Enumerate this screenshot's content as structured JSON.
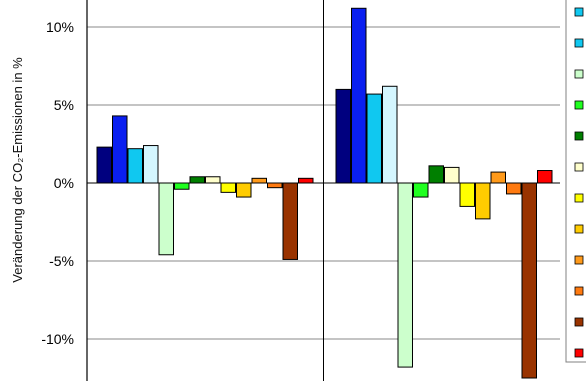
{
  "chart_data": {
    "type": "bar",
    "ylabel": "Veränderung der CO₂-Emissionen in %",
    "ylim": [
      -12.5,
      10.8
    ],
    "yticks": [
      {
        "value": 10,
        "label": "10%"
      },
      {
        "value": 5,
        "label": "5%"
      },
      {
        "value": 0,
        "label": "0%"
      },
      {
        "value": -5,
        "label": "-5%"
      },
      {
        "value": -10,
        "label": "-10%"
      }
    ],
    "grid": true,
    "legend_position": "right",
    "groups": [
      {
        "bars": [
          {
            "value": 2.3,
            "color": "#00007f"
          },
          {
            "value": 4.3,
            "color": "#0a1ff0"
          },
          {
            "value": 2.2,
            "color": "#10c8f0"
          },
          {
            "value": 2.4,
            "color": "#d4f6ff"
          },
          {
            "value": -4.6,
            "color": "#ccffcc"
          },
          {
            "value": -0.4,
            "color": "#20ff20"
          },
          {
            "value": 0.4,
            "color": "#007f00"
          },
          {
            "value": 0.4,
            "color": "#ffffcc"
          },
          {
            "value": -0.6,
            "color": "#ffff00"
          },
          {
            "value": -0.9,
            "color": "#ffcc00"
          },
          {
            "value": 0.3,
            "color": "#ff9a1a"
          },
          {
            "value": -0.3,
            "color": "#ff7a10"
          },
          {
            "value": -4.9,
            "color": "#993300"
          },
          {
            "value": 0.3,
            "color": "#ff0000"
          }
        ]
      },
      {
        "bars": [
          {
            "value": 6.0,
            "color": "#00007f"
          },
          {
            "value": 11.2,
            "color": "#0a1ff0"
          },
          {
            "value": 5.7,
            "color": "#10c8f0"
          },
          {
            "value": 6.2,
            "color": "#d4f6ff"
          },
          {
            "value": -11.8,
            "color": "#ccffcc"
          },
          {
            "value": -0.9,
            "color": "#20ff20"
          },
          {
            "value": 1.1,
            "color": "#007f00"
          },
          {
            "value": 1.0,
            "color": "#ffffcc"
          },
          {
            "value": -1.5,
            "color": "#ffff00"
          },
          {
            "value": -2.3,
            "color": "#ffcc00"
          },
          {
            "value": 0.7,
            "color": "#ff9a1a"
          },
          {
            "value": -0.7,
            "color": "#ff7a10"
          },
          {
            "value": -12.5,
            "color": "#993300"
          },
          {
            "value": 0.8,
            "color": "#ff0000"
          }
        ]
      }
    ],
    "legend_swatches": [
      "#10c8f0",
      "#10c8f0",
      "#ccffcc",
      "#20ff20",
      "#007f00",
      "#ffffcc",
      "#ffff00",
      "#ffcc00",
      "#ff9a1a",
      "#ff7a10",
      "#993300",
      "#ff0000"
    ]
  }
}
